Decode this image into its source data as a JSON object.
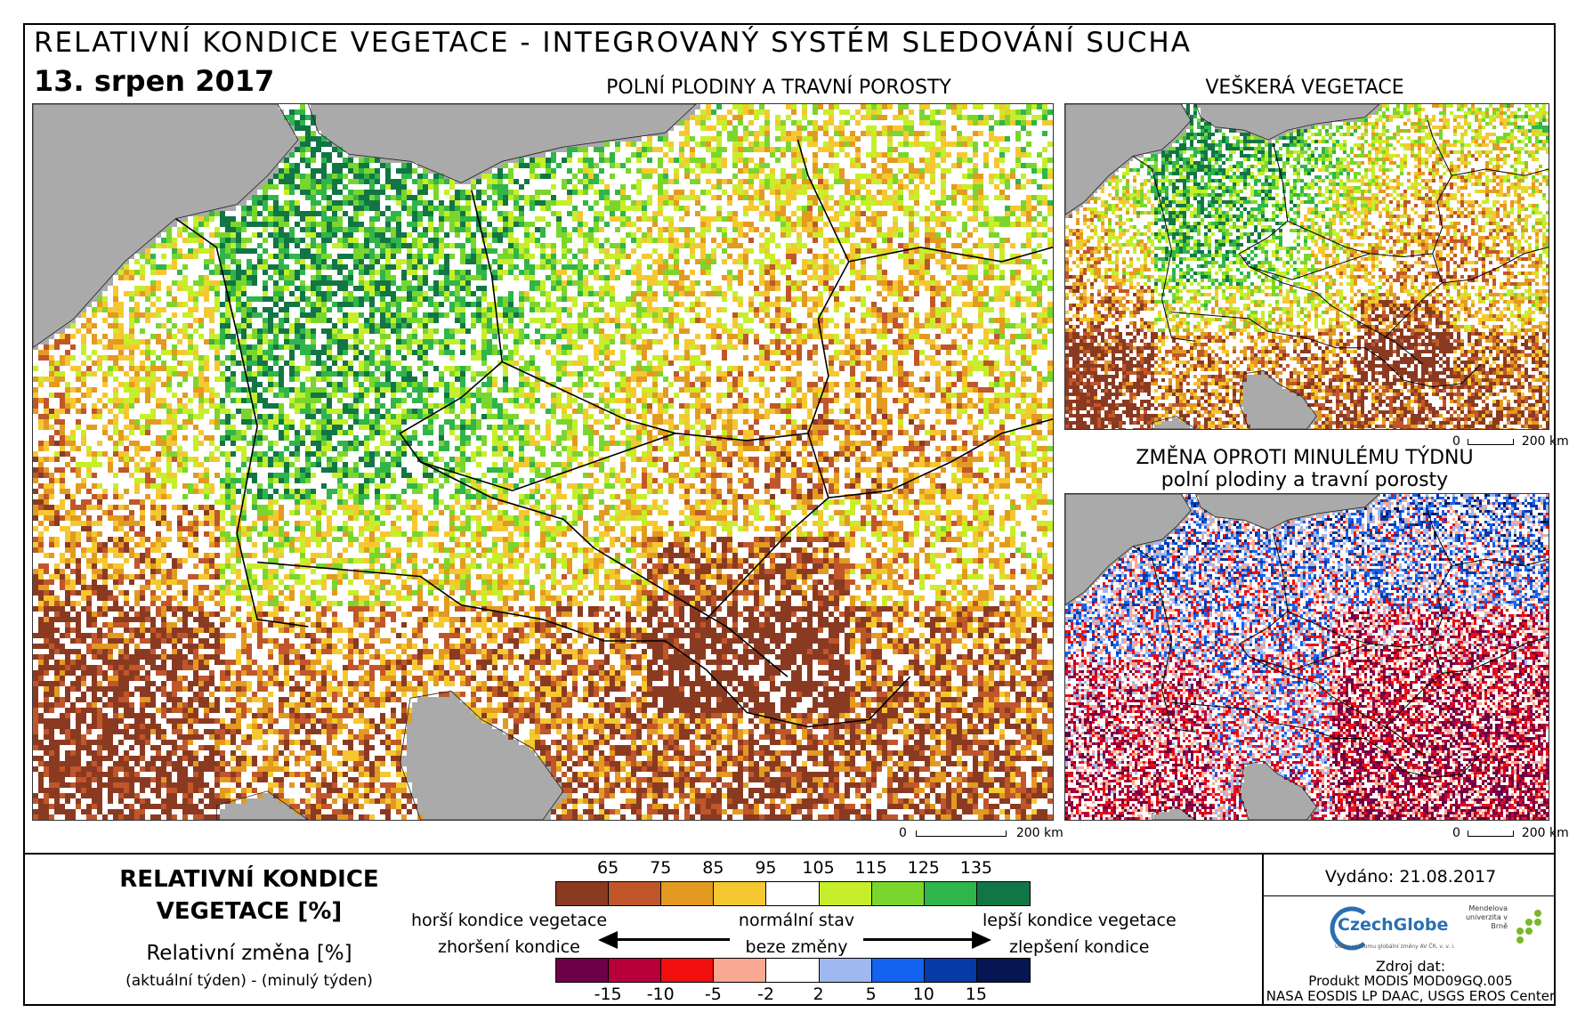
{
  "header": {
    "title": "RELATIVNÍ KONDICE VEGETACE - INTEGROVANÝ SYSTÉM SLEDOVÁNÍ SUCHA",
    "date": "13. srpen 2017"
  },
  "panels": {
    "main": {
      "caption": "POLNÍ PLODINY A TRAVNÍ POROSTY",
      "scale_zero": "0",
      "scale_km": "200 km"
    },
    "all_vegetation": {
      "caption": "VEŠKERÁ VEGETACE",
      "scale_zero": "0",
      "scale_km": "200 km"
    },
    "change": {
      "caption_line1": "ZMĚNA OPROTI MINULÉMU TÝDNU",
      "caption_line2": "polní plodiny a travní porosty",
      "scale_zero": "0",
      "scale_km": "200 km"
    }
  },
  "legend": {
    "title_line1": "RELATIVNÍ KONDICE",
    "title_line2": "VEGETACE [%]",
    "change_title": "Relativní změna [%]",
    "change_subtitle": "(aktuální týden) - (minulý týden)",
    "condition_ticks": [
      "65",
      "75",
      "85",
      "95",
      "105",
      "115",
      "125",
      "135"
    ],
    "condition_colors": [
      "#8b3a22",
      "#c0562a",
      "#e39a20",
      "#f5c830",
      "#ffffff",
      "#c6ee2a",
      "#7ad62c",
      "#2fb54a",
      "#127545"
    ],
    "change_ticks": [
      "-15",
      "-10",
      "-5",
      "-2",
      "2",
      "5",
      "10",
      "15"
    ],
    "change_colors": [
      "#6d0046",
      "#b7003a",
      "#f00e0e",
      "#f9a891",
      "#ffffff",
      "#9fb8ef",
      "#1462f0",
      "#063aa6",
      "#071552"
    ],
    "worse_condition": "horší kondice vegetace",
    "normal_state": "normální stav",
    "better_condition": "lepší kondice vegetace",
    "deterioration": "zhoršení kondice",
    "no_change": "beze změny",
    "improvement": "zlepšení kondice"
  },
  "info": {
    "issued": "Vydáno: 21.08.2017",
    "czechglobe": "CzechGlobe",
    "czechglobe_sub": "Ústav výzkumu globální změny AV ČR, v. v. i.",
    "mendel": "Mendelova univerzita v Brně",
    "source_label": "Zdroj dat:",
    "source_line1": "Produkt MODIS MOD09GQ.005",
    "source_line2": "NASA EOSDIS LP DAAC, USGS EROS Center"
  },
  "colors": {
    "sea": "#aaaaaa",
    "border": "#000000"
  }
}
